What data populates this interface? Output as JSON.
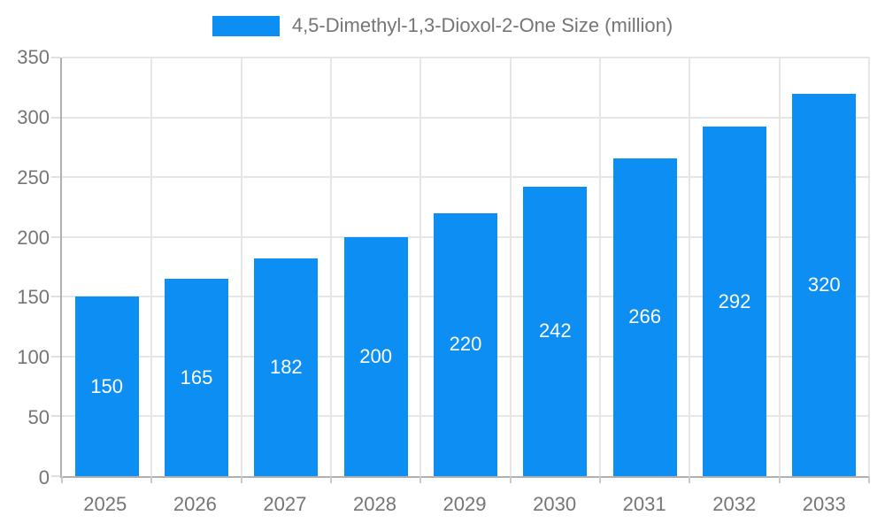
{
  "legend": {
    "label": "4,5-Dimethyl-1,3-Dioxol-2-One Size (million)"
  },
  "chart_data": {
    "type": "bar",
    "title": "4,5-Dimethyl-1,3-Dioxol-2-One Size (million)",
    "categories": [
      "2025",
      "2026",
      "2027",
      "2028",
      "2029",
      "2030",
      "2031",
      "2032",
      "2033"
    ],
    "values": [
      150,
      165,
      182,
      200,
      220,
      242,
      266,
      292,
      320
    ],
    "xlabel": "",
    "ylabel": "",
    "ylim": [
      0,
      350
    ],
    "yticks": [
      0,
      50,
      100,
      150,
      200,
      250,
      300,
      350
    ],
    "grid": true,
    "legend_position": "top",
    "value_labels": "inside-center-white"
  },
  "colors": {
    "bar": "#0d8ef2",
    "legend_swatch": "#0d8ef2",
    "gridline": "#e6e6e6",
    "axis_line": "#b0b0b0",
    "tick_label": "#757575",
    "value_label": "#ffffff",
    "background": "#ffffff"
  }
}
